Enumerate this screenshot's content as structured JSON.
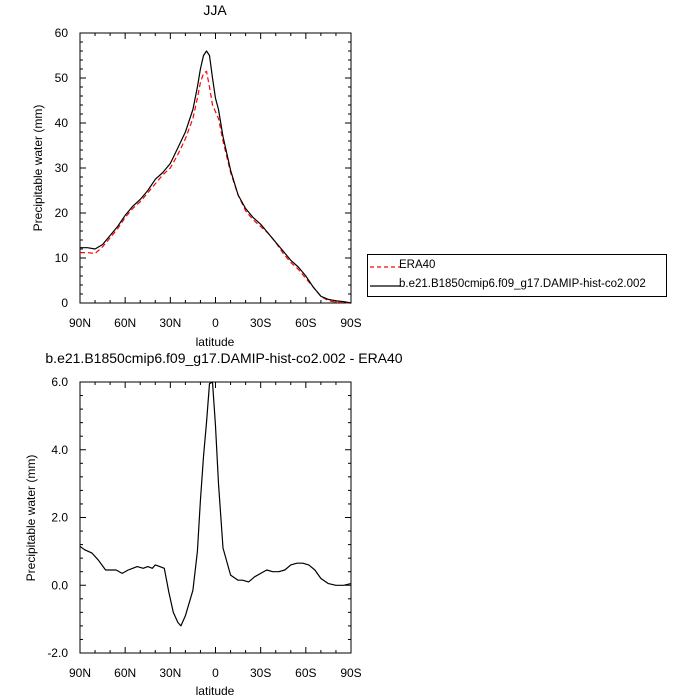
{
  "chart_data": [
    {
      "type": "line",
      "title": "JJA",
      "xlabel": "latitude",
      "ylabel": "Precipitable water (mm)",
      "xlim": [
        90,
        -90
      ],
      "ylim": [
        0,
        60
      ],
      "xticks": [
        90,
        60,
        30,
        0,
        -30,
        -60,
        -90
      ],
      "xtick_labels": [
        "90N",
        "60N",
        "30N",
        "0",
        "30S",
        "60S",
        "90S"
      ],
      "yticks": [
        0,
        10,
        20,
        30,
        40,
        50,
        60
      ],
      "ytick_labels": [
        "0",
        "10",
        "20",
        "30",
        "40",
        "50",
        "60"
      ],
      "legend_position": "right",
      "series": [
        {
          "name": "ERA40",
          "color": "#ff0000",
          "dash": "dashed",
          "x": [
            90,
            85,
            80,
            75,
            70,
            65,
            60,
            55,
            50,
            45,
            40,
            35,
            30,
            25,
            20,
            15,
            12,
            10,
            8,
            6,
            4,
            2,
            0,
            -2,
            -5,
            -10,
            -15,
            -20,
            -25,
            -30,
            -35,
            -40,
            -45,
            -50,
            -55,
            -60,
            -65,
            -70,
            -75,
            -80,
            -85,
            -90
          ],
          "y": [
            11.2,
            11.2,
            11.0,
            12.5,
            14.5,
            16.5,
            19.0,
            21.0,
            22.5,
            24.5,
            26.5,
            28.5,
            30.0,
            33.0,
            36.5,
            41.0,
            45.5,
            49.0,
            51.0,
            51.5,
            48.0,
            44.0,
            42.5,
            41.0,
            36.0,
            29.0,
            24.0,
            20.5,
            18.5,
            17.0,
            15.5,
            13.5,
            11.0,
            9.0,
            7.5,
            5.5,
            3.5,
            1.5,
            0.5,
            0.2,
            0.1,
            0.0
          ]
        },
        {
          "name": "b.e21.B1850cmip6.f09_g17.DAMIP-hist-co2.002",
          "color": "#000000",
          "dash": "solid",
          "x": [
            90,
            85,
            80,
            75,
            70,
            65,
            60,
            55,
            50,
            45,
            40,
            35,
            30,
            25,
            20,
            15,
            12,
            10,
            8,
            6,
            4,
            2,
            0,
            -2,
            -5,
            -10,
            -15,
            -20,
            -25,
            -30,
            -35,
            -40,
            -45,
            -50,
            -55,
            -60,
            -65,
            -70,
            -75,
            -80,
            -85,
            -90
          ],
          "y": [
            12.3,
            12.3,
            12.0,
            13.0,
            15.0,
            17.0,
            19.5,
            21.5,
            23.0,
            25.0,
            27.5,
            29.0,
            31.0,
            34.5,
            38.0,
            43.0,
            48.0,
            52.0,
            55.0,
            56.0,
            55.0,
            50.0,
            45.5,
            43.0,
            37.0,
            29.5,
            24.0,
            21.0,
            19.0,
            17.5,
            15.5,
            13.5,
            11.5,
            9.5,
            8.0,
            6.0,
            3.5,
            1.5,
            0.8,
            0.5,
            0.3,
            0.0
          ]
        }
      ]
    },
    {
      "type": "line",
      "title": "b.e21.B1850cmip6.f09_g17.DAMIP-hist-co2.002 - ERA40",
      "xlabel": "latitude",
      "ylabel": "Precipitable water (mm)",
      "xlim": [
        90,
        -90
      ],
      "ylim": [
        -2,
        6
      ],
      "xticks": [
        90,
        60,
        30,
        0,
        -30,
        -60,
        -90
      ],
      "xtick_labels": [
        "90N",
        "60N",
        "30N",
        "0",
        "30S",
        "60S",
        "90S"
      ],
      "yticks": [
        -2,
        0,
        2,
        4,
        6
      ],
      "ytick_labels": [
        "-2.0",
        "0.0",
        "2.0",
        "4.0",
        "6.0"
      ],
      "series": [
        {
          "color": "#000000",
          "dash": "solid",
          "x": [
            90,
            87,
            82,
            78,
            73,
            70,
            66,
            62,
            58,
            55,
            52,
            48,
            45,
            42,
            40,
            37,
            34,
            31,
            28,
            25,
            23,
            20,
            18,
            15,
            12,
            10,
            8,
            6,
            4,
            2,
            0,
            -2,
            -5,
            -10,
            -15,
            -18,
            -22,
            -26,
            -30,
            -34,
            -38,
            -42,
            -46,
            -50,
            -54,
            -58,
            -62,
            -66,
            -70,
            -75,
            -80,
            -85,
            -90
          ],
          "y": [
            1.15,
            1.05,
            0.95,
            0.75,
            0.45,
            0.45,
            0.45,
            0.35,
            0.45,
            0.5,
            0.55,
            0.5,
            0.55,
            0.5,
            0.6,
            0.55,
            0.5,
            -0.2,
            -0.8,
            -1.1,
            -1.2,
            -0.9,
            -0.6,
            -0.15,
            1.0,
            2.5,
            3.8,
            4.8,
            5.95,
            6.0,
            4.7,
            3.0,
            1.1,
            0.3,
            0.15,
            0.15,
            0.1,
            0.25,
            0.35,
            0.45,
            0.4,
            0.4,
            0.45,
            0.6,
            0.65,
            0.65,
            0.6,
            0.45,
            0.2,
            0.05,
            0.0,
            0.0,
            0.05
          ]
        }
      ]
    }
  ]
}
